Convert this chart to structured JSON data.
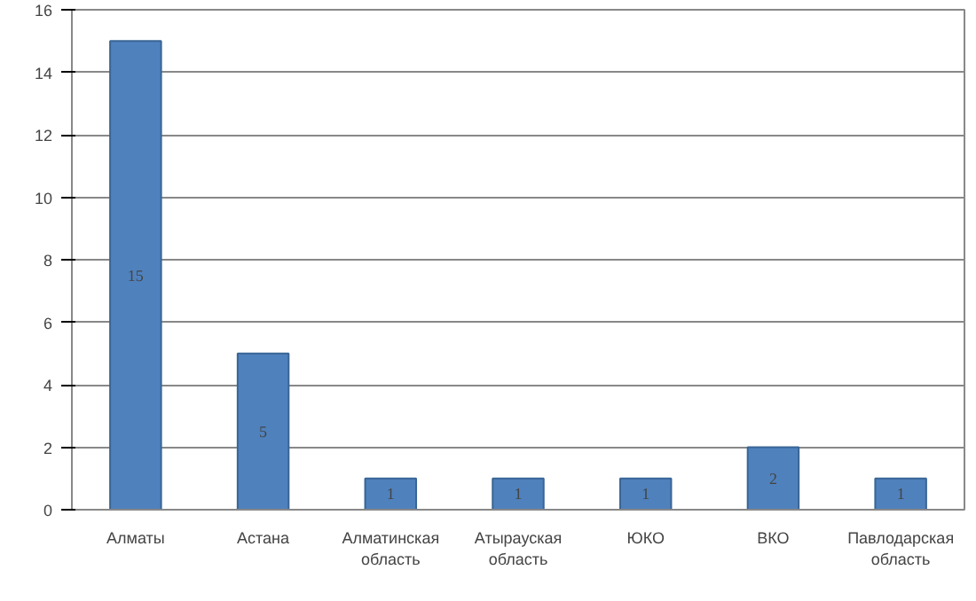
{
  "chart_data": {
    "type": "bar",
    "categories": [
      "Алматы",
      "Астана",
      "Алматинская область",
      "Атырауская область",
      "ЮКО",
      "ВКО",
      "Павлодарская область"
    ],
    "values": [
      15,
      5,
      1,
      1,
      1,
      2,
      1
    ],
    "color": "#4f81bd",
    "ylim": [
      0,
      16
    ],
    "yticks": [
      0,
      2,
      4,
      6,
      8,
      10,
      12,
      14,
      16
    ],
    "grid": "y",
    "data_labels": true
  }
}
